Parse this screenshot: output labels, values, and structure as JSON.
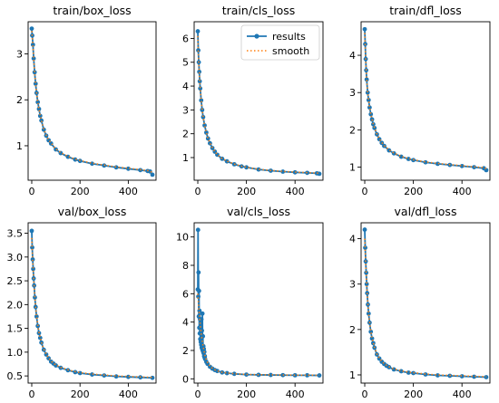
{
  "chart_data": [
    {
      "type": "line",
      "title": "train/box_loss",
      "xlim": [
        -15,
        515
      ],
      "ylim": [
        0.25,
        3.7
      ],
      "xticks": [
        0,
        200,
        400
      ],
      "xtick_labels": [
        "0",
        "200",
        "400"
      ],
      "yticks": [
        1,
        2,
        3
      ],
      "ytick_labels": [
        "1",
        "2",
        "3"
      ],
      "series": [
        {
          "name": "results",
          "x": [
            0,
            2,
            5,
            8,
            12,
            16,
            20,
            25,
            30,
            35,
            40,
            50,
            60,
            70,
            80,
            100,
            120,
            150,
            180,
            200,
            250,
            300,
            350,
            400,
            450,
            480,
            490,
            500
          ],
          "y": [
            3.55,
            3.4,
            3.2,
            2.9,
            2.6,
            2.35,
            2.15,
            1.95,
            1.8,
            1.65,
            1.55,
            1.35,
            1.22,
            1.12,
            1.05,
            0.92,
            0.84,
            0.76,
            0.7,
            0.67,
            0.61,
            0.57,
            0.53,
            0.5,
            0.47,
            0.45,
            0.44,
            0.37
          ]
        },
        {
          "name": "smooth",
          "x": [
            0,
            2,
            5,
            8,
            12,
            16,
            20,
            25,
            30,
            35,
            40,
            50,
            60,
            70,
            80,
            100,
            120,
            150,
            180,
            200,
            250,
            300,
            350,
            400,
            450,
            480,
            490,
            500
          ],
          "y": [
            3.5,
            3.38,
            3.18,
            2.9,
            2.6,
            2.35,
            2.15,
            1.95,
            1.8,
            1.66,
            1.55,
            1.36,
            1.23,
            1.13,
            1.06,
            0.93,
            0.85,
            0.77,
            0.71,
            0.68,
            0.62,
            0.58,
            0.54,
            0.51,
            0.48,
            0.46,
            0.45,
            0.41
          ]
        }
      ]
    },
    {
      "type": "line",
      "title": "train/cls_loss",
      "xlim": [
        -15,
        515
      ],
      "ylim": [
        0.05,
        6.7
      ],
      "xticks": [
        0,
        200,
        400
      ],
      "xtick_labels": [
        "0",
        "200",
        "400"
      ],
      "yticks": [
        1,
        2,
        3,
        4,
        5,
        6
      ],
      "ytick_labels": [
        "1",
        "2",
        "3",
        "4",
        "5",
        "6"
      ],
      "legend": [
        "results",
        "smooth"
      ],
      "series": [
        {
          "name": "results",
          "x": [
            0,
            2,
            4,
            6,
            8,
            10,
            14,
            18,
            22,
            28,
            35,
            42,
            50,
            60,
            70,
            80,
            100,
            120,
            150,
            180,
            200,
            250,
            300,
            350,
            400,
            450,
            490,
            500
          ],
          "y": [
            6.3,
            5.5,
            5.0,
            4.6,
            4.2,
            3.9,
            3.4,
            3.0,
            2.7,
            2.35,
            2.05,
            1.8,
            1.6,
            1.4,
            1.25,
            1.12,
            0.95,
            0.84,
            0.72,
            0.63,
            0.59,
            0.5,
            0.45,
            0.41,
            0.38,
            0.36,
            0.34,
            0.32
          ]
        },
        {
          "name": "smooth",
          "x": [
            0,
            2,
            4,
            6,
            8,
            10,
            14,
            18,
            22,
            28,
            35,
            42,
            50,
            60,
            70,
            80,
            100,
            120,
            150,
            180,
            200,
            250,
            300,
            350,
            400,
            450,
            490,
            500
          ],
          "y": [
            6.1,
            5.45,
            5.0,
            4.6,
            4.2,
            3.9,
            3.4,
            3.0,
            2.7,
            2.36,
            2.06,
            1.81,
            1.61,
            1.41,
            1.26,
            1.13,
            0.96,
            0.85,
            0.73,
            0.64,
            0.6,
            0.51,
            0.46,
            0.42,
            0.39,
            0.37,
            0.35,
            0.34
          ]
        }
      ]
    },
    {
      "type": "line",
      "title": "train/dfl_loss",
      "xlim": [
        -15,
        515
      ],
      "ylim": [
        0.65,
        4.9
      ],
      "xticks": [
        0,
        200,
        400
      ],
      "xtick_labels": [
        "0",
        "200",
        "400"
      ],
      "yticks": [
        1,
        2,
        3,
        4
      ],
      "ytick_labels": [
        "1",
        "2",
        "3",
        "4"
      ],
      "series": [
        {
          "name": "results",
          "x": [
            0,
            2,
            4,
            6,
            8,
            12,
            16,
            20,
            25,
            30,
            35,
            40,
            50,
            60,
            70,
            80,
            100,
            120,
            150,
            180,
            200,
            250,
            300,
            350,
            400,
            450,
            490,
            500
          ],
          "y": [
            4.7,
            4.3,
            3.9,
            3.6,
            3.35,
            3.0,
            2.8,
            2.6,
            2.42,
            2.28,
            2.15,
            2.05,
            1.88,
            1.75,
            1.65,
            1.57,
            1.45,
            1.37,
            1.28,
            1.22,
            1.19,
            1.13,
            1.09,
            1.06,
            1.03,
            1.0,
            0.97,
            0.92
          ]
        },
        {
          "name": "smooth",
          "x": [
            0,
            2,
            4,
            6,
            8,
            12,
            16,
            20,
            25,
            30,
            35,
            40,
            50,
            60,
            70,
            80,
            100,
            120,
            150,
            180,
            200,
            250,
            300,
            350,
            400,
            450,
            490,
            500
          ],
          "y": [
            4.6,
            4.25,
            3.88,
            3.6,
            3.35,
            3.0,
            2.8,
            2.6,
            2.43,
            2.29,
            2.16,
            2.06,
            1.89,
            1.76,
            1.66,
            1.58,
            1.46,
            1.38,
            1.29,
            1.23,
            1.2,
            1.14,
            1.1,
            1.07,
            1.04,
            1.01,
            0.99,
            0.96
          ]
        }
      ]
    },
    {
      "type": "line",
      "title": "val/box_loss",
      "xlim": [
        -15,
        515
      ],
      "ylim": [
        0.35,
        3.72
      ],
      "xticks": [
        0,
        200,
        400
      ],
      "xtick_labels": [
        "0",
        "200",
        "400"
      ],
      "yticks": [
        0.5,
        1.0,
        1.5,
        2.0,
        2.5,
        3.0,
        3.5
      ],
      "ytick_labels": [
        "0.5",
        "1.0",
        "1.5",
        "2.0",
        "2.5",
        "3.0",
        "3.5"
      ],
      "series": [
        {
          "name": "results",
          "x": [
            0,
            2,
            4,
            6,
            8,
            10,
            13,
            16,
            20,
            25,
            30,
            35,
            40,
            50,
            60,
            70,
            80,
            90,
            100,
            120,
            150,
            180,
            200,
            250,
            300,
            350,
            400,
            450,
            500
          ],
          "y": [
            3.55,
            3.2,
            2.95,
            2.75,
            2.55,
            2.4,
            2.15,
            1.95,
            1.75,
            1.55,
            1.4,
            1.3,
            1.2,
            1.05,
            0.95,
            0.87,
            0.8,
            0.76,
            0.72,
            0.67,
            0.62,
            0.58,
            0.56,
            0.53,
            0.51,
            0.49,
            0.48,
            0.47,
            0.46
          ]
        },
        {
          "name": "smooth",
          "x": [
            0,
            2,
            4,
            6,
            8,
            10,
            13,
            16,
            20,
            25,
            30,
            35,
            40,
            50,
            60,
            70,
            80,
            90,
            100,
            120,
            150,
            180,
            200,
            250,
            300,
            350,
            400,
            450,
            500
          ],
          "y": [
            3.4,
            3.15,
            2.92,
            2.72,
            2.54,
            2.38,
            2.15,
            1.95,
            1.76,
            1.57,
            1.42,
            1.31,
            1.21,
            1.06,
            0.96,
            0.88,
            0.81,
            0.77,
            0.73,
            0.68,
            0.63,
            0.59,
            0.57,
            0.54,
            0.52,
            0.5,
            0.49,
            0.48,
            0.47
          ]
        }
      ]
    },
    {
      "type": "line",
      "title": "val/cls_loss",
      "xlim": [
        -15,
        515
      ],
      "ylim": [
        -0.3,
        11.0
      ],
      "xticks": [
        0,
        200,
        400
      ],
      "xtick_labels": [
        "0",
        "200",
        "400"
      ],
      "yticks": [
        0,
        2,
        4,
        6,
        8,
        10
      ],
      "ytick_labels": [
        "0",
        "2",
        "4",
        "6",
        "8",
        "10"
      ],
      "series": [
        {
          "name": "results",
          "x": [
            0,
            1,
            2,
            3,
            4,
            5,
            6,
            7,
            8,
            9,
            10,
            11,
            12,
            13,
            14,
            15,
            16,
            17,
            18,
            19,
            20,
            21,
            22,
            23,
            24,
            25,
            26,
            27,
            28,
            29,
            30,
            35,
            40,
            50,
            60,
            70,
            80,
            100,
            120,
            150,
            200,
            250,
            300,
            350,
            400,
            450,
            500
          ],
          "y": [
            6.3,
            10.5,
            5.8,
            7.5,
            4.4,
            6.2,
            3.6,
            4.8,
            3.2,
            4.2,
            2.8,
            3.7,
            2.6,
            3.3,
            2.4,
            4.2,
            2.2,
            3.4,
            2.1,
            4.6,
            2.0,
            3.0,
            1.9,
            2.3,
            1.8,
            2.1,
            1.6,
            1.9,
            1.5,
            1.6,
            1.4,
            1.2,
            1.05,
            0.85,
            0.72,
            0.62,
            0.55,
            0.45,
            0.4,
            0.35,
            0.3,
            0.28,
            0.27,
            0.26,
            0.25,
            0.25,
            0.24
          ]
        },
        {
          "name": "smooth",
          "x": [
            0,
            2,
            4,
            6,
            8,
            10,
            12,
            14,
            16,
            18,
            20,
            22,
            24,
            26,
            28,
            30,
            35,
            40,
            50,
            60,
            70,
            80,
            100,
            120,
            150,
            200,
            250,
            300,
            350,
            400,
            450,
            500
          ],
          "y": [
            6.0,
            5.5,
            5.0,
            4.6,
            4.2,
            3.8,
            3.5,
            3.2,
            2.95,
            2.7,
            2.5,
            2.3,
            2.1,
            1.95,
            1.8,
            1.65,
            1.35,
            1.15,
            0.9,
            0.75,
            0.64,
            0.56,
            0.46,
            0.41,
            0.36,
            0.31,
            0.29,
            0.28,
            0.27,
            0.26,
            0.26,
            0.25
          ]
        }
      ]
    },
    {
      "type": "line",
      "title": "val/dfl_loss",
      "xlim": [
        -15,
        515
      ],
      "ylim": [
        0.82,
        4.35
      ],
      "xticks": [
        0,
        200,
        400
      ],
      "xtick_labels": [
        "0",
        "200",
        "400"
      ],
      "yticks": [
        1,
        2,
        3,
        4
      ],
      "ytick_labels": [
        "1",
        "2",
        "3",
        "4"
      ],
      "series": [
        {
          "name": "results",
          "x": [
            0,
            2,
            4,
            6,
            8,
            10,
            13,
            16,
            20,
            25,
            30,
            35,
            40,
            50,
            60,
            70,
            80,
            90,
            100,
            120,
            150,
            180,
            200,
            250,
            300,
            350,
            400,
            450,
            500
          ],
          "y": [
            4.2,
            3.8,
            3.5,
            3.25,
            3.0,
            2.8,
            2.55,
            2.35,
            2.15,
            1.95,
            1.8,
            1.7,
            1.6,
            1.45,
            1.36,
            1.29,
            1.24,
            1.2,
            1.17,
            1.12,
            1.08,
            1.05,
            1.04,
            1.01,
            0.99,
            0.98,
            0.97,
            0.96,
            0.95
          ]
        },
        {
          "name": "smooth",
          "x": [
            0,
            2,
            4,
            6,
            8,
            10,
            13,
            16,
            20,
            25,
            30,
            35,
            40,
            50,
            60,
            70,
            80,
            90,
            100,
            120,
            150,
            180,
            200,
            250,
            300,
            350,
            400,
            450,
            500
          ],
          "y": [
            4.0,
            3.72,
            3.46,
            3.22,
            3.0,
            2.8,
            2.56,
            2.36,
            2.16,
            1.96,
            1.81,
            1.71,
            1.61,
            1.46,
            1.37,
            1.3,
            1.25,
            1.21,
            1.18,
            1.13,
            1.09,
            1.06,
            1.05,
            1.02,
            1.0,
            0.99,
            0.98,
            0.97,
            0.96
          ]
        }
      ]
    }
  ],
  "colors": {
    "results": "#1f77b4",
    "smooth": "#ff7f0e",
    "axis": "#000000"
  }
}
